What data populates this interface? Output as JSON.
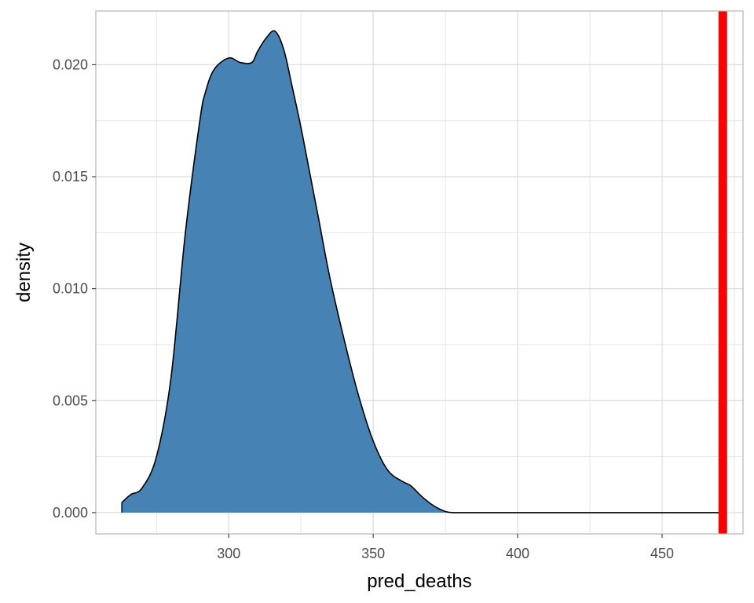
{
  "chart_data": {
    "type": "area",
    "title": "",
    "xlabel": "pred_deaths",
    "ylabel": "density",
    "xlim": [
      254,
      478
    ],
    "ylim": [
      -0.00095,
      0.0224
    ],
    "x_ticks": [
      300,
      350,
      400,
      450
    ],
    "x_tick_labels": [
      "300",
      "350",
      "400",
      "450"
    ],
    "y_ticks": [
      0.0,
      0.005,
      0.01,
      0.015,
      0.02
    ],
    "y_tick_labels": [
      "0.000",
      "0.005",
      "0.010",
      "0.015",
      "0.020"
    ],
    "grid": true,
    "series": [
      {
        "fill_color": "#4682B4",
        "line_color": "#000000",
        "x": [
          263,
          266,
          270,
          275,
          280,
          285,
          290,
          292,
          295,
          300,
          304,
          308,
          310,
          313,
          316,
          319,
          322,
          325,
          328,
          331,
          335,
          340,
          345,
          350,
          355,
          360,
          363,
          367,
          371,
          375,
          378,
          385,
          400,
          430,
          460,
          472
        ],
        "y": [
          0.00045,
          0.0008,
          0.0011,
          0.0025,
          0.006,
          0.0125,
          0.0175,
          0.0188,
          0.0198,
          0.0203,
          0.0201,
          0.0201,
          0.0206,
          0.0212,
          0.0215,
          0.0207,
          0.019,
          0.0172,
          0.0152,
          0.0132,
          0.0105,
          0.0077,
          0.0052,
          0.0032,
          0.0019,
          0.0014,
          0.0012,
          0.0007,
          0.0003,
          5e-05,
          0.0,
          0.0,
          0.0,
          0.0,
          0.0,
          0.0
        ]
      }
    ],
    "reference_lines": [
      {
        "orientation": "vertical",
        "x": 471,
        "color": "#FF0000"
      }
    ],
    "colors": {
      "grid": "#DEDEDE",
      "panel_border": "#B3B3B3",
      "tick_label": "#4D4D4D",
      "axis_title": "#000000"
    }
  }
}
